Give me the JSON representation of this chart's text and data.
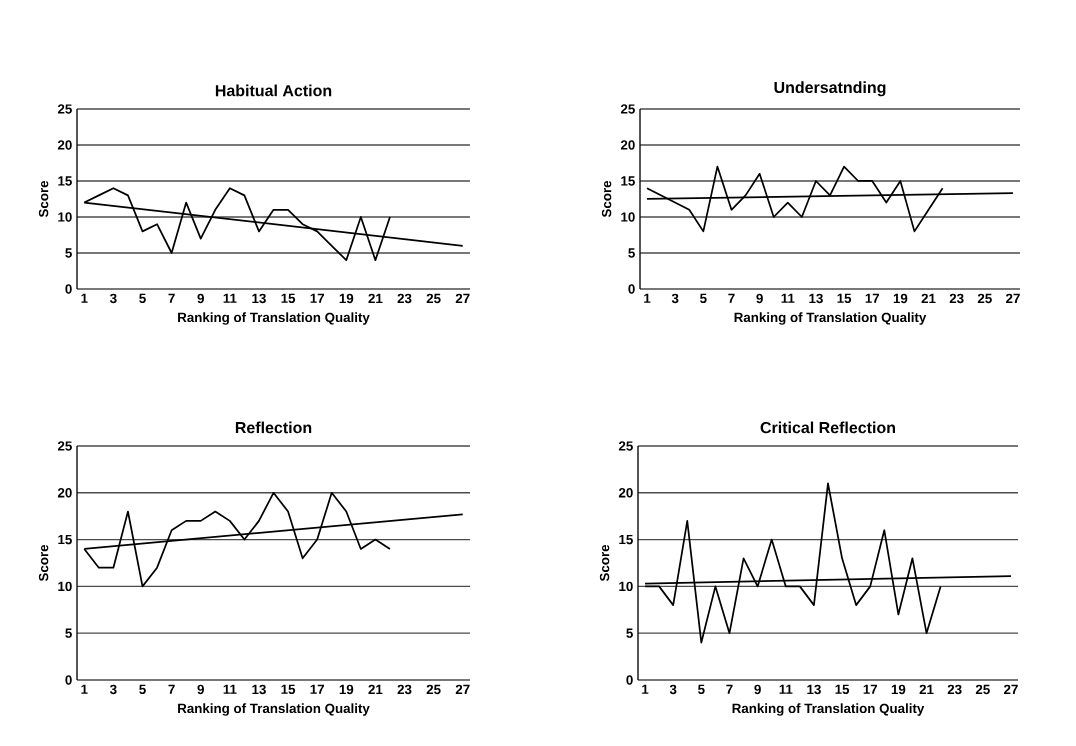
{
  "chart_data": [
    {
      "type": "line",
      "title": "Habitual Action",
      "xlabel": "Ranking of Translation Quality",
      "ylabel": "Score",
      "xlim": [
        0.5,
        27.5
      ],
      "ylim": [
        0,
        25
      ],
      "xticks": [
        1,
        3,
        5,
        7,
        9,
        11,
        13,
        15,
        17,
        19,
        21,
        23,
        25,
        27
      ],
      "yticks": [
        0,
        5,
        10,
        15,
        20,
        25
      ],
      "grid": "y",
      "series": [
        {
          "color": "#000000",
          "x": [
            1,
            2,
            3,
            4,
            5,
            6,
            7,
            8,
            9,
            10,
            11,
            12,
            13,
            14,
            15,
            16,
            17,
            18,
            19,
            20,
            21,
            22
          ],
          "values": [
            12,
            13,
            14,
            13,
            8,
            9,
            5,
            12,
            7,
            11,
            14,
            13,
            8,
            11,
            11,
            9,
            8,
            6,
            4,
            10,
            4,
            10
          ]
        },
        {
          "type": "line",
          "color": "#000000",
          "x": [
            1,
            27
          ],
          "values": [
            12,
            6
          ]
        }
      ]
    },
    {
      "type": "line",
      "title": "Undersatnding",
      "xlabel": "Ranking of Translation Quality",
      "ylabel": "Score",
      "xlim": [
        0.5,
        27.5
      ],
      "ylim": [
        0,
        25
      ],
      "xticks": [
        1,
        3,
        5,
        7,
        9,
        11,
        13,
        15,
        17,
        19,
        21,
        23,
        25,
        27
      ],
      "yticks": [
        0,
        5,
        10,
        15,
        20,
        25
      ],
      "grid": "y",
      "series": [
        {
          "color": "#000000",
          "x": [
            1,
            2,
            3,
            4,
            5,
            6,
            7,
            8,
            9,
            10,
            11,
            12,
            13,
            14,
            15,
            16,
            17,
            18,
            19,
            20,
            21,
            22
          ],
          "values": [
            14,
            13,
            12,
            11,
            8,
            17,
            11,
            13,
            16,
            10,
            12,
            10,
            15,
            13,
            17,
            15,
            15,
            12,
            15,
            8,
            11,
            14
          ]
        },
        {
          "type": "line",
          "color": "#000000",
          "x": [
            1,
            27
          ],
          "values": [
            12.5,
            13.3
          ]
        }
      ]
    },
    {
      "type": "line",
      "title": "Reflection",
      "xlabel": "Ranking of Translation Quality",
      "ylabel": "Score",
      "xlim": [
        0.5,
        27.5
      ],
      "ylim": [
        0,
        25
      ],
      "xticks": [
        1,
        3,
        5,
        7,
        9,
        11,
        13,
        15,
        17,
        19,
        21,
        23,
        25,
        27
      ],
      "yticks": [
        0,
        5,
        10,
        15,
        20,
        25
      ],
      "grid": "y",
      "series": [
        {
          "color": "#000000",
          "x": [
            1,
            2,
            3,
            4,
            5,
            6,
            7,
            8,
            9,
            10,
            11,
            12,
            13,
            14,
            15,
            16,
            17,
            18,
            19,
            20,
            21,
            22
          ],
          "values": [
            14,
            12,
            12,
            18,
            10,
            12,
            16,
            17,
            17,
            18,
            17,
            15,
            17,
            20,
            18,
            13,
            15,
            20,
            18,
            14,
            15,
            14
          ]
        },
        {
          "type": "line",
          "color": "#000000",
          "x": [
            1,
            27
          ],
          "values": [
            14,
            17.7
          ]
        }
      ]
    },
    {
      "type": "line",
      "title": "Critical Reflection",
      "xlabel": "Ranking of Translation Quality",
      "ylabel": "Score",
      "xlim": [
        0.5,
        27.5
      ],
      "ylim": [
        0,
        25
      ],
      "xticks": [
        1,
        3,
        5,
        7,
        9,
        11,
        13,
        15,
        17,
        19,
        21,
        23,
        25,
        27
      ],
      "yticks": [
        0,
        5,
        10,
        15,
        20,
        25
      ],
      "grid": "y",
      "series": [
        {
          "color": "#000000",
          "x": [
            1,
            2,
            3,
            4,
            5,
            6,
            7,
            8,
            9,
            10,
            11,
            12,
            13,
            14,
            15,
            16,
            17,
            18,
            19,
            20,
            21,
            22
          ],
          "values": [
            10,
            10,
            8,
            17,
            4,
            10,
            5,
            13,
            10,
            15,
            10,
            10,
            8,
            21,
            13,
            8,
            10,
            16,
            7,
            13,
            5,
            10
          ]
        },
        {
          "type": "line",
          "color": "#000000",
          "x": [
            1,
            27
          ],
          "values": [
            10.3,
            11.1
          ]
        }
      ]
    }
  ]
}
